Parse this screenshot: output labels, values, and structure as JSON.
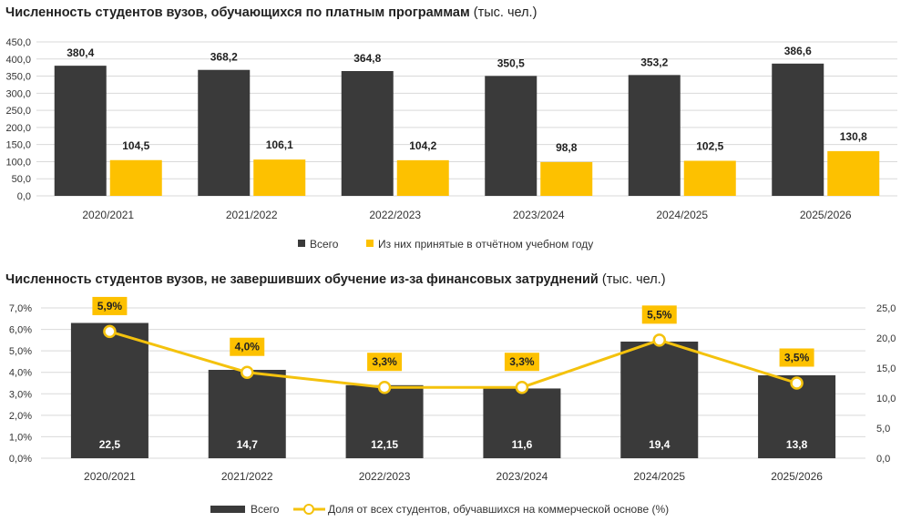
{
  "colors": {
    "dark": "#3a3a3a",
    "yellow": "#fdc100",
    "grid": "#d9d9d9",
    "line": "#f4c20d"
  },
  "chart_data": [
    {
      "type": "bar",
      "title_bold": "Численность студентов вузов, обучающихся по платным программам",
      "title_unit": "(тыс. чел.)",
      "categories": [
        "2020/2021",
        "2021/2022",
        "2022/2023",
        "2023/2024",
        "2024/2025",
        "2025/2026"
      ],
      "series": [
        {
          "name": "Всего",
          "values": [
            380.4,
            368.2,
            364.8,
            350.5,
            353.2,
            386.6
          ],
          "labels": [
            "380,4",
            "368,2",
            "364,8",
            "350,5",
            "353,2",
            "386,6"
          ]
        },
        {
          "name": "Из них принятые в отчётном учебном году",
          "values": [
            104.5,
            106.1,
            104.2,
            98.8,
            102.5,
            130.8
          ],
          "labels": [
            "104,5",
            "106,1",
            "104,2",
            "98,8",
            "102,5",
            "130,8"
          ]
        }
      ],
      "ylim": [
        0,
        450
      ],
      "yticks": [
        "0,0",
        "50,0",
        "100,0",
        "150,0",
        "200,0",
        "250,0",
        "300,0",
        "350,0",
        "400,0",
        "450,0"
      ],
      "legend": "bottom"
    },
    {
      "type": "bar+line",
      "title_bold": "Численность студентов вузов, не завершивших обучение из-за финансовых затруднений",
      "title_unit": "(тыс. чел.)",
      "categories": [
        "2020/2021",
        "2021/2022",
        "2022/2023",
        "2023/2024",
        "2024/2025",
        "2025/2026"
      ],
      "series": [
        {
          "name": "Всего",
          "axis": "right",
          "values": [
            22.5,
            14.7,
            12.15,
            11.6,
            19.4,
            13.8
          ],
          "labels": [
            "22,5",
            "14,7",
            "12,15",
            "11,6",
            "19,4",
            "13,8"
          ]
        },
        {
          "name": "Доля от всех студентов, обучавшихся на коммерческой основе (%)",
          "axis": "left",
          "values": [
            5.9,
            4.0,
            3.3,
            3.3,
            5.5,
            3.5
          ],
          "labels": [
            "5,9%",
            "4,0%",
            "3,3%",
            "3,3%",
            "5,5%",
            "3,5%"
          ]
        }
      ],
      "ylim_left": [
        0,
        7
      ],
      "yticks_left": [
        "0,0%",
        "1,0%",
        "2,0%",
        "3,0%",
        "4,0%",
        "5,0%",
        "6,0%",
        "7,0%"
      ],
      "ylim_right": [
        0,
        25
      ],
      "yticks_right": [
        "0,0",
        "5,0",
        "10,0",
        "15,0",
        "20,0",
        "25,0"
      ],
      "legend": "bottom"
    }
  ]
}
